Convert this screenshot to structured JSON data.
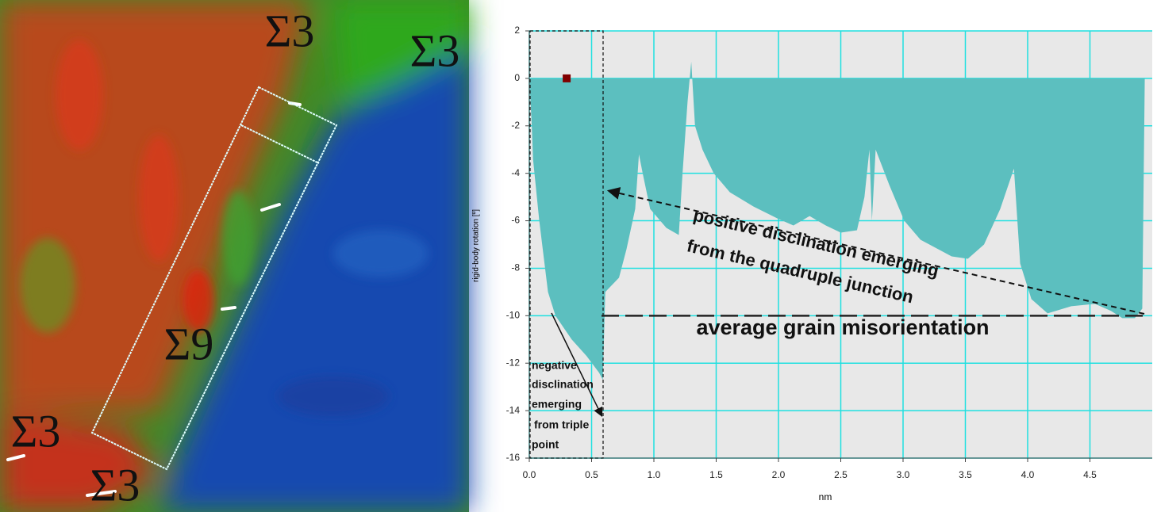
{
  "image": {
    "labels": [
      "Σ3",
      "Σ3",
      "Σ9",
      "Σ3",
      "Σ3"
    ]
  },
  "chart_data": {
    "type": "area",
    "y_label": "rigid-body rotation [º]",
    "x_label": "nm",
    "x": [
      0,
      0.02,
      0.03,
      0.08,
      0.15,
      0.21,
      0.34,
      0.46,
      0.56,
      0.59,
      0.61,
      0.72,
      0.78,
      0.85,
      0.88,
      0.91,
      0.97,
      1.1,
      1.2,
      1.23,
      1.27,
      1.3,
      1.33,
      1.39,
      1.48,
      1.61,
      1.8,
      1.99,
      2.12,
      2.25,
      2.38,
      2.5,
      2.63,
      2.69,
      2.73,
      2.75,
      2.78,
      2.89,
      3.01,
      3.14,
      3.39,
      3.52,
      3.65,
      3.78,
      3.89,
      3.94,
      4.03,
      4.16,
      4.35,
      4.54,
      4.67,
      4.76,
      4.86,
      4.92,
      4.94
    ],
    "values": [
      0,
      -2,
      -3.4,
      -6,
      -9,
      -10,
      -11,
      -11.7,
      -12.4,
      -12.7,
      -9,
      -8.4,
      -7.2,
      -5.5,
      -3.2,
      -4,
      -5.5,
      -6.3,
      -6.6,
      -4,
      -1,
      0.7,
      -2,
      -3,
      -4,
      -4.8,
      -5.4,
      -5.9,
      -6.2,
      -5.8,
      -6.2,
      -6.5,
      -6.4,
      -5,
      -3,
      -6,
      -3,
      -4.5,
      -6,
      -6.8,
      -7.5,
      -7.6,
      -7,
      -5.5,
      -3.8,
      -7.8,
      -9.3,
      -9.9,
      -9.6,
      -9.5,
      -9.8,
      -10.1,
      -10.1,
      -9.7,
      0
    ],
    "color": "#5cbfbf",
    "marker": {
      "x": 0.3,
      "y": 0,
      "color": "#800000"
    },
    "average_line": -10,
    "xlim": [
      0,
      5
    ],
    "ylim": [
      -16,
      2
    ],
    "xticks": [
      {
        "value": 0,
        "label": "0.0"
      },
      {
        "value": 0.5,
        "label": "0.5"
      },
      {
        "value": 1,
        "label": "1.0"
      },
      {
        "value": 1.5,
        "label": "1.5"
      },
      {
        "value": 2,
        "label": "2.0"
      },
      {
        "value": 2.5,
        "label": "2.5"
      },
      {
        "value": 3,
        "label": "3.0"
      },
      {
        "value": 3.5,
        "label": "3.5"
      },
      {
        "value": 4,
        "label": "4.0"
      },
      {
        "value": 4.5,
        "label": "4.5"
      }
    ],
    "yticks": [
      -16,
      -14,
      -12,
      -10,
      -8,
      -6,
      -4,
      -2,
      0,
      2
    ],
    "grid": true,
    "grid_color": "#1fe0e0",
    "annotations": [
      "positive disclination emerging",
      "from the quadruple junction",
      "average grain misorientation",
      "negative",
      "disclination",
      "emerging",
      "from triple",
      "point"
    ]
  }
}
